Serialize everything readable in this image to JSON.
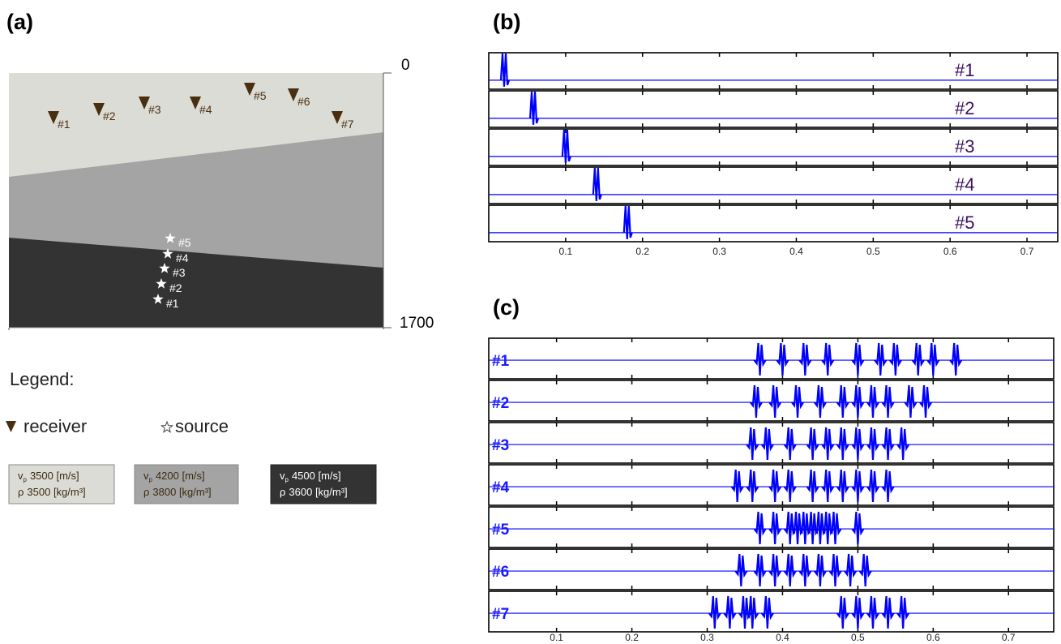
{
  "panel_a": {
    "label": "(a)",
    "depth_top": "0",
    "depth_bottom": "1700",
    "receivers": [
      "#1",
      "#2",
      "#3",
      "#4",
      "#5",
      "#6",
      "#7"
    ],
    "sources": [
      "#1",
      "#2",
      "#3",
      "#4",
      "#5"
    ],
    "legend": {
      "title": "Legend:",
      "receiver": "receiver",
      "source": "source"
    },
    "vp_symbol": "v",
    "vp_subscript": "p",
    "rho_symbol": "ρ",
    "layers": [
      {
        "vp": "3500 [m/s]",
        "rho": "3500 [kg/m³]",
        "color": "#dcdcd6"
      },
      {
        "vp": "4200 [m/s]",
        "rho": "3800 [kg/m³]",
        "color": "#a4a4a4"
      },
      {
        "vp": "4500 [m/s]",
        "rho": "3600 [kg/m³]",
        "color": "#333333"
      }
    ]
  },
  "chart_data": [
    {
      "type": "spike-seismogram",
      "label": "(b)",
      "color": "#0000ff",
      "label_color": "#3a1060",
      "xlim": [
        0,
        0.74
      ],
      "xticks": [
        0.1,
        0.2,
        0.3,
        0.4,
        0.5,
        0.6,
        0.7
      ],
      "traces": [
        {
          "name": "#1",
          "arrival": 0.02
        },
        {
          "name": "#2",
          "arrival": 0.058
        },
        {
          "name": "#3",
          "arrival": 0.1
        },
        {
          "name": "#4",
          "arrival": 0.14
        },
        {
          "name": "#5",
          "arrival": 0.18
        }
      ]
    },
    {
      "type": "wavelet-seismogram",
      "label": "(c)",
      "color": "#0000ff",
      "label_color": "#1a1aff",
      "xlim": [
        0.01,
        0.76
      ],
      "xticks": [
        0.1,
        0.2,
        0.3,
        0.4,
        0.5,
        0.6,
        0.7
      ],
      "traces": [
        {
          "name": "#1",
          "arrivals": [
            0.37,
            0.4,
            0.43,
            0.46,
            0.5,
            0.53,
            0.55,
            0.58,
            0.6,
            0.63
          ]
        },
        {
          "name": "#2",
          "arrivals": [
            0.365,
            0.39,
            0.42,
            0.45,
            0.48,
            0.5,
            0.52,
            0.54,
            0.57,
            0.59
          ]
        },
        {
          "name": "#3",
          "arrivals": [
            0.36,
            0.38,
            0.41,
            0.44,
            0.46,
            0.48,
            0.5,
            0.52,
            0.54,
            0.56
          ]
        },
        {
          "name": "#4",
          "arrivals": [
            0.34,
            0.36,
            0.39,
            0.41,
            0.44,
            0.46,
            0.48,
            0.5,
            0.52,
            0.54
          ]
        },
        {
          "name": "#5",
          "arrivals": [
            0.37,
            0.39,
            0.41,
            0.42,
            0.43,
            0.44,
            0.45,
            0.46,
            0.47,
            0.5
          ]
        },
        {
          "name": "#6",
          "arrivals": [
            0.345,
            0.37,
            0.39,
            0.41,
            0.43,
            0.45,
            0.47,
            0.49,
            0.51
          ]
        },
        {
          "name": "#7",
          "arrivals": [
            0.31,
            0.33,
            0.35,
            0.36,
            0.38,
            0.48,
            0.5,
            0.52,
            0.54,
            0.56
          ]
        }
      ]
    }
  ]
}
